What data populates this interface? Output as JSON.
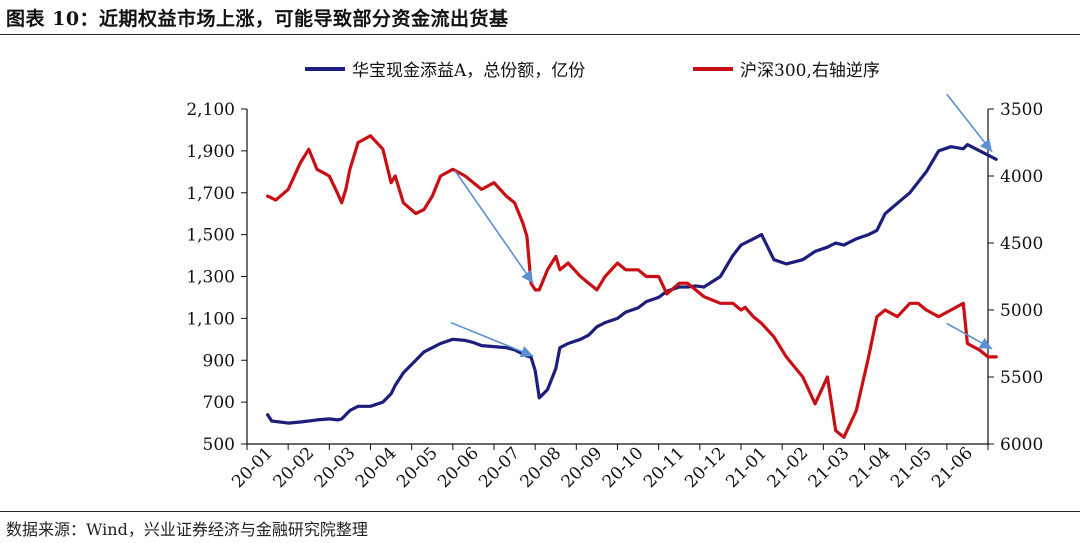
{
  "header": {
    "title": "图表 10：近期权益市场上涨，可能导致部分资金流出货基"
  },
  "footer": {
    "source": "数据来源：Wind，兴业证券经济与金融研究院整理"
  },
  "colors": {
    "series1": "#1c1d7c",
    "series2": "#c80f14",
    "arrow": "#5b8fd0"
  },
  "chart_data": {
    "type": "line",
    "title": "",
    "x_ticks": [
      "20-01",
      "20-02",
      "20-03",
      "20-04",
      "20-05",
      "20-06",
      "20-07",
      "20-08",
      "20-09",
      "20-10",
      "20-11",
      "20-12",
      "21-01",
      "21-02",
      "21-03",
      "21-04",
      "21-05",
      "21-06"
    ],
    "y_left": {
      "ylim": [
        500,
        2100
      ],
      "ticks": [
        "2,100",
        "1,900",
        "1,700",
        "1,500",
        "1,300",
        "1,100",
        "900",
        "700",
        "500"
      ],
      "tick_values": [
        2100,
        1900,
        1700,
        1500,
        1300,
        1100,
        900,
        700,
        500
      ]
    },
    "y_right": {
      "ylim": [
        3500,
        6000
      ],
      "reversed": true,
      "ticks": [
        "3500",
        "4000",
        "4500",
        "5000",
        "5500",
        "6000"
      ],
      "tick_values": [
        3500,
        4000,
        4500,
        5000,
        5500,
        6000
      ]
    },
    "series": [
      {
        "name": "华宝现金添益A，总份额，亿份",
        "axis": "left",
        "color": "#1c1d7c",
        "x": [
          0.0,
          0.1,
          0.5,
          0.8,
          1.0,
          1.2,
          1.5,
          1.7,
          1.8,
          1.9,
          2.0,
          2.2,
          2.5,
          2.8,
          3.0,
          3.1,
          3.3,
          3.6,
          3.8,
          4.0,
          4.2,
          4.5,
          4.8,
          5.0,
          5.2,
          5.5,
          5.8,
          6.0,
          6.2,
          6.3,
          6.4,
          6.5,
          6.6,
          6.8,
          7.0,
          7.1,
          7.3,
          7.6,
          7.8,
          8.0,
          8.2,
          8.5,
          8.7,
          9.0,
          9.2,
          9.5,
          9.7,
          10.0,
          10.2,
          10.4,
          10.6,
          11.0,
          11.3,
          11.5,
          11.6,
          11.8,
          12.0,
          12.3,
          12.6,
          13.0,
          13.3,
          13.6,
          13.8,
          14.0,
          14.3,
          14.6,
          14.8,
          15.0,
          15.3,
          15.6,
          15.8,
          16.0,
          16.3,
          16.6,
          16.9,
          17.0,
          17.3,
          17.5,
          17.7
        ],
        "values": [
          640,
          610,
          600,
          605,
          610,
          615,
          620,
          615,
          620,
          640,
          660,
          680,
          680,
          700,
          740,
          780,
          840,
          900,
          940,
          960,
          980,
          1000,
          995,
          985,
          970,
          965,
          960,
          950,
          930,
          920,
          915,
          850,
          720,
          760,
          860,
          960,
          980,
          1000,
          1020,
          1060,
          1080,
          1100,
          1130,
          1150,
          1180,
          1200,
          1230,
          1250,
          1250,
          1255,
          1250,
          1300,
          1400,
          1450,
          1460,
          1480,
          1500,
          1380,
          1360,
          1380,
          1420,
          1440,
          1460,
          1450,
          1480,
          1500,
          1520,
          1600,
          1650,
          1700,
          1750,
          1800,
          1900,
          1920,
          1910,
          1930,
          1900,
          1880,
          1860
        ]
      },
      {
        "name": "沪深300,右轴逆序",
        "axis": "right",
        "color": "#c80f14",
        "x": [
          0.0,
          0.2,
          0.5,
          0.8,
          1.0,
          1.2,
          1.5,
          1.7,
          1.8,
          1.9,
          2.0,
          2.2,
          2.5,
          2.8,
          3.0,
          3.1,
          3.3,
          3.6,
          3.8,
          4.0,
          4.2,
          4.5,
          4.8,
          5.0,
          5.2,
          5.5,
          5.8,
          6.0,
          6.2,
          6.3,
          6.4,
          6.5,
          6.6,
          6.8,
          7.0,
          7.1,
          7.3,
          7.6,
          7.8,
          8.0,
          8.2,
          8.5,
          8.7,
          9.0,
          9.2,
          9.5,
          9.7,
          10.0,
          10.2,
          10.4,
          10.6,
          11.0,
          11.3,
          11.5,
          11.6,
          11.8,
          12.0,
          12.3,
          12.6,
          13.0,
          13.3,
          13.6,
          13.8,
          14.0,
          14.3,
          14.6,
          14.8,
          15.0,
          15.3,
          15.6,
          15.8,
          16.0,
          16.3,
          16.6,
          16.9,
          17.0,
          17.3,
          17.5,
          17.7
        ],
        "values": [
          4150,
          4180,
          4100,
          3900,
          3800,
          3950,
          4000,
          4130,
          4200,
          4100,
          3950,
          3750,
          3700,
          3800,
          4050,
          4000,
          4200,
          4280,
          4250,
          4150,
          4000,
          3950,
          4000,
          4050,
          4100,
          4050,
          4150,
          4200,
          4350,
          4450,
          4800,
          4850,
          4850,
          4700,
          4600,
          4700,
          4650,
          4750,
          4800,
          4850,
          4750,
          4650,
          4700,
          4700,
          4750,
          4750,
          4880,
          4800,
          4800,
          4850,
          4900,
          4950,
          4950,
          5000,
          4980,
          5050,
          5100,
          5200,
          5350,
          5500,
          5700,
          5500,
          5900,
          5950,
          5750,
          5350,
          5050,
          5000,
          5050,
          4950,
          4950,
          5000,
          5050,
          5000,
          4950,
          5250,
          5300,
          5350,
          5350
        ]
      }
    ],
    "legend_position": "top",
    "annotations": [
      "arrows"
    ]
  }
}
